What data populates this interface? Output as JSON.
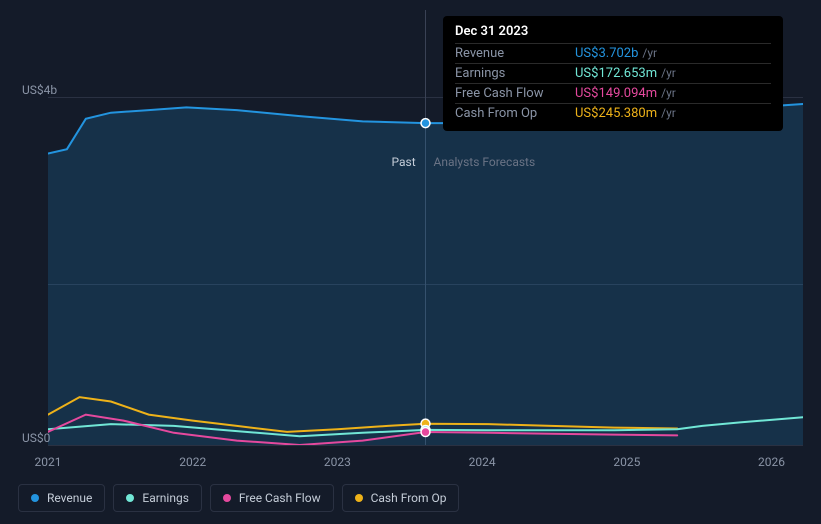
{
  "chart": {
    "type": "area-line",
    "background_color": "#141b29",
    "grid_color": "#2a3142",
    "label_color": "#8a94a6",
    "label_fontsize": 12,
    "past_label": "Past",
    "forecast_label": "Analysts Forecasts",
    "past_label_color": "#c5cdd8",
    "forecast_label_color": "#6a7385",
    "divider_x": 3.0,
    "xlim": [
      0,
      6.0
    ],
    "ylim": [
      0,
      5.0
    ],
    "y_ticks": [
      {
        "value": 0,
        "label": "US$0"
      },
      {
        "value": 4,
        "label": "US$4b"
      }
    ],
    "x_ticks": [
      {
        "value": 0.0,
        "label": "2021"
      },
      {
        "value": 1.15,
        "label": "2022"
      },
      {
        "value": 2.3,
        "label": "2023"
      },
      {
        "value": 3.45,
        "label": "2024"
      },
      {
        "value": 4.6,
        "label": "2025"
      },
      {
        "value": 5.75,
        "label": "2026"
      }
    ],
    "series": [
      {
        "id": "revenue",
        "label": "Revenue",
        "color": "#2394df",
        "fill": true,
        "fill_opacity": 0.18,
        "points": [
          [
            0,
            3.35
          ],
          [
            0.15,
            3.4
          ],
          [
            0.3,
            3.75
          ],
          [
            0.5,
            3.82
          ],
          [
            0.8,
            3.85
          ],
          [
            1.1,
            3.88
          ],
          [
            1.5,
            3.85
          ],
          [
            2.0,
            3.78
          ],
          [
            2.5,
            3.72
          ],
          [
            3.0,
            3.7
          ],
          [
            3.5,
            3.7
          ],
          [
            4.0,
            3.72
          ],
          [
            4.5,
            3.78
          ],
          [
            5.0,
            3.82
          ],
          [
            5.5,
            3.87
          ],
          [
            6.0,
            3.92
          ]
        ]
      },
      {
        "id": "cash_from_op",
        "label": "Cash From Op",
        "color": "#eeb219",
        "fill": false,
        "points": [
          [
            0,
            0.35
          ],
          [
            0.25,
            0.55
          ],
          [
            0.5,
            0.5
          ],
          [
            0.8,
            0.35
          ],
          [
            1.15,
            0.28
          ],
          [
            1.5,
            0.22
          ],
          [
            1.9,
            0.15
          ],
          [
            2.3,
            0.18
          ],
          [
            2.7,
            0.22
          ],
          [
            3.0,
            0.245
          ],
          [
            3.5,
            0.24
          ],
          [
            4.0,
            0.22
          ],
          [
            4.5,
            0.2
          ],
          [
            5.0,
            0.19
          ]
        ]
      },
      {
        "id": "earnings",
        "label": "Earnings",
        "color": "#71e7d6",
        "fill": false,
        "points": [
          [
            0,
            0.18
          ],
          [
            0.5,
            0.24
          ],
          [
            1.0,
            0.22
          ],
          [
            1.5,
            0.16
          ],
          [
            2.0,
            0.1
          ],
          [
            2.5,
            0.14
          ],
          [
            3.0,
            0.173
          ],
          [
            3.5,
            0.17
          ],
          [
            4.0,
            0.17
          ],
          [
            4.5,
            0.17
          ],
          [
            5.0,
            0.18
          ],
          [
            5.2,
            0.22
          ],
          [
            5.5,
            0.26
          ],
          [
            6.0,
            0.32
          ]
        ]
      },
      {
        "id": "free_cash_flow",
        "label": "Free Cash Flow",
        "color": "#e5499e",
        "fill": false,
        "points": [
          [
            0,
            0.15
          ],
          [
            0.3,
            0.35
          ],
          [
            0.6,
            0.28
          ],
          [
            1.0,
            0.14
          ],
          [
            1.5,
            0.05
          ],
          [
            2.0,
            0.0
          ],
          [
            2.5,
            0.05
          ],
          [
            3.0,
            0.149
          ],
          [
            3.5,
            0.14
          ],
          [
            4.0,
            0.13
          ],
          [
            4.5,
            0.12
          ],
          [
            5.0,
            0.11
          ]
        ]
      }
    ],
    "marker": {
      "x": 3.0,
      "points": [
        {
          "series": "revenue",
          "y": 3.7
        },
        {
          "series": "cash_from_op",
          "y": 0.245
        },
        {
          "series": "earnings",
          "y": 0.173
        },
        {
          "series": "free_cash_flow",
          "y": 0.149
        }
      ]
    }
  },
  "tooltip": {
    "date": "Dec 31 2023",
    "unit": "/yr",
    "rows": [
      {
        "key": "Revenue",
        "value": "US$3.702b",
        "color": "#2394df"
      },
      {
        "key": "Earnings",
        "value": "US$172.653m",
        "color": "#71e7d6"
      },
      {
        "key": "Free Cash Flow",
        "value": "US$149.094m",
        "color": "#e5499e"
      },
      {
        "key": "Cash From Op",
        "value": "US$245.380m",
        "color": "#eeb219"
      }
    ]
  },
  "legend": {
    "border_color": "#2a3142",
    "items": [
      {
        "id": "revenue",
        "label": "Revenue",
        "color": "#2394df"
      },
      {
        "id": "earnings",
        "label": "Earnings",
        "color": "#71e7d6"
      },
      {
        "id": "free_cash_flow",
        "label": "Free Cash Flow",
        "color": "#e5499e"
      },
      {
        "id": "cash_from_op",
        "label": "Cash From Op",
        "color": "#eeb219"
      }
    ]
  }
}
